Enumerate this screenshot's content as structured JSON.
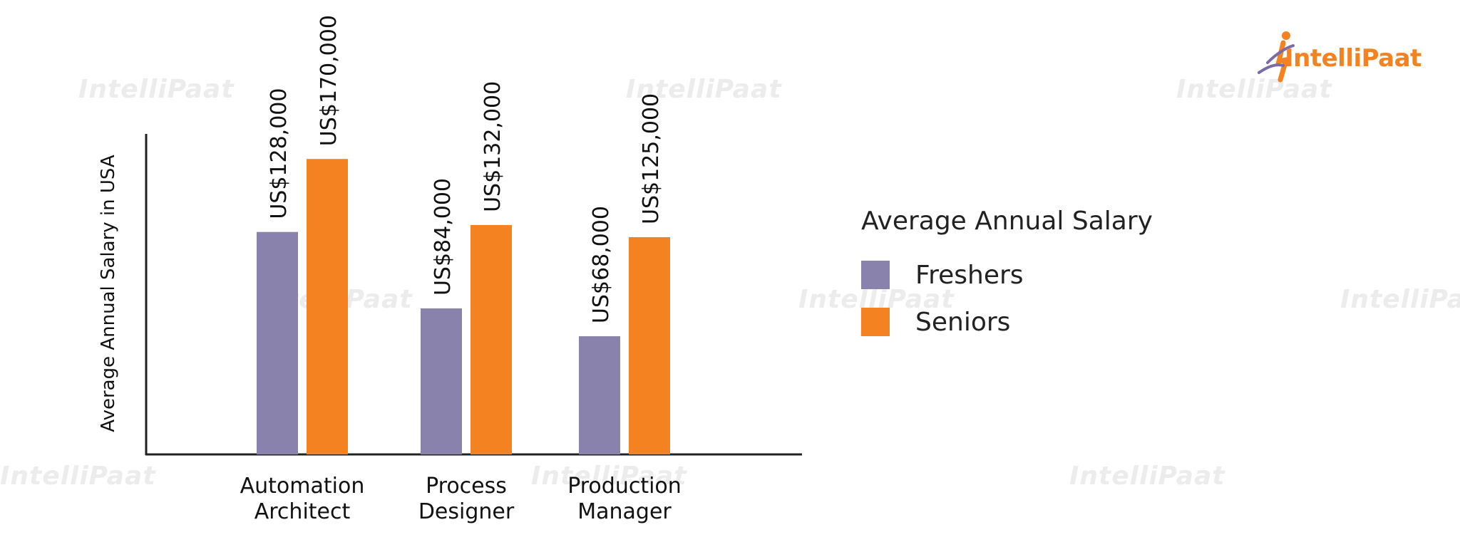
{
  "watermark_text": "IntelliPaat",
  "logo": {
    "prefix": "I",
    "text": "ntelliPaat"
  },
  "legend": {
    "title": "Average Annual Salary",
    "items": [
      {
        "label": "Freshers",
        "color": "#8882ac"
      },
      {
        "label": "Seniors",
        "color": "#f58220"
      }
    ]
  },
  "chart_data": {
    "type": "bar",
    "title": "",
    "xlabel": "",
    "ylabel": "Average Annual Salary in USA",
    "categories": [
      "Automation Architect",
      "Process Designer",
      "Production Manager"
    ],
    "series": [
      {
        "name": "Freshers",
        "values": [
          128000,
          84000,
          68000
        ],
        "labels": [
          "US$128,000",
          "US$84,000",
          "US$68,000"
        ],
        "color": "#8882ac"
      },
      {
        "name": "Seniors",
        "values": [
          170000,
          132000,
          125000
        ],
        "labels": [
          "US$170,000",
          "US$132,000",
          "US$125,000"
        ],
        "color": "#f58220"
      }
    ],
    "ylim": [
      0,
      183000
    ],
    "grid": false,
    "legend_position": "right"
  }
}
